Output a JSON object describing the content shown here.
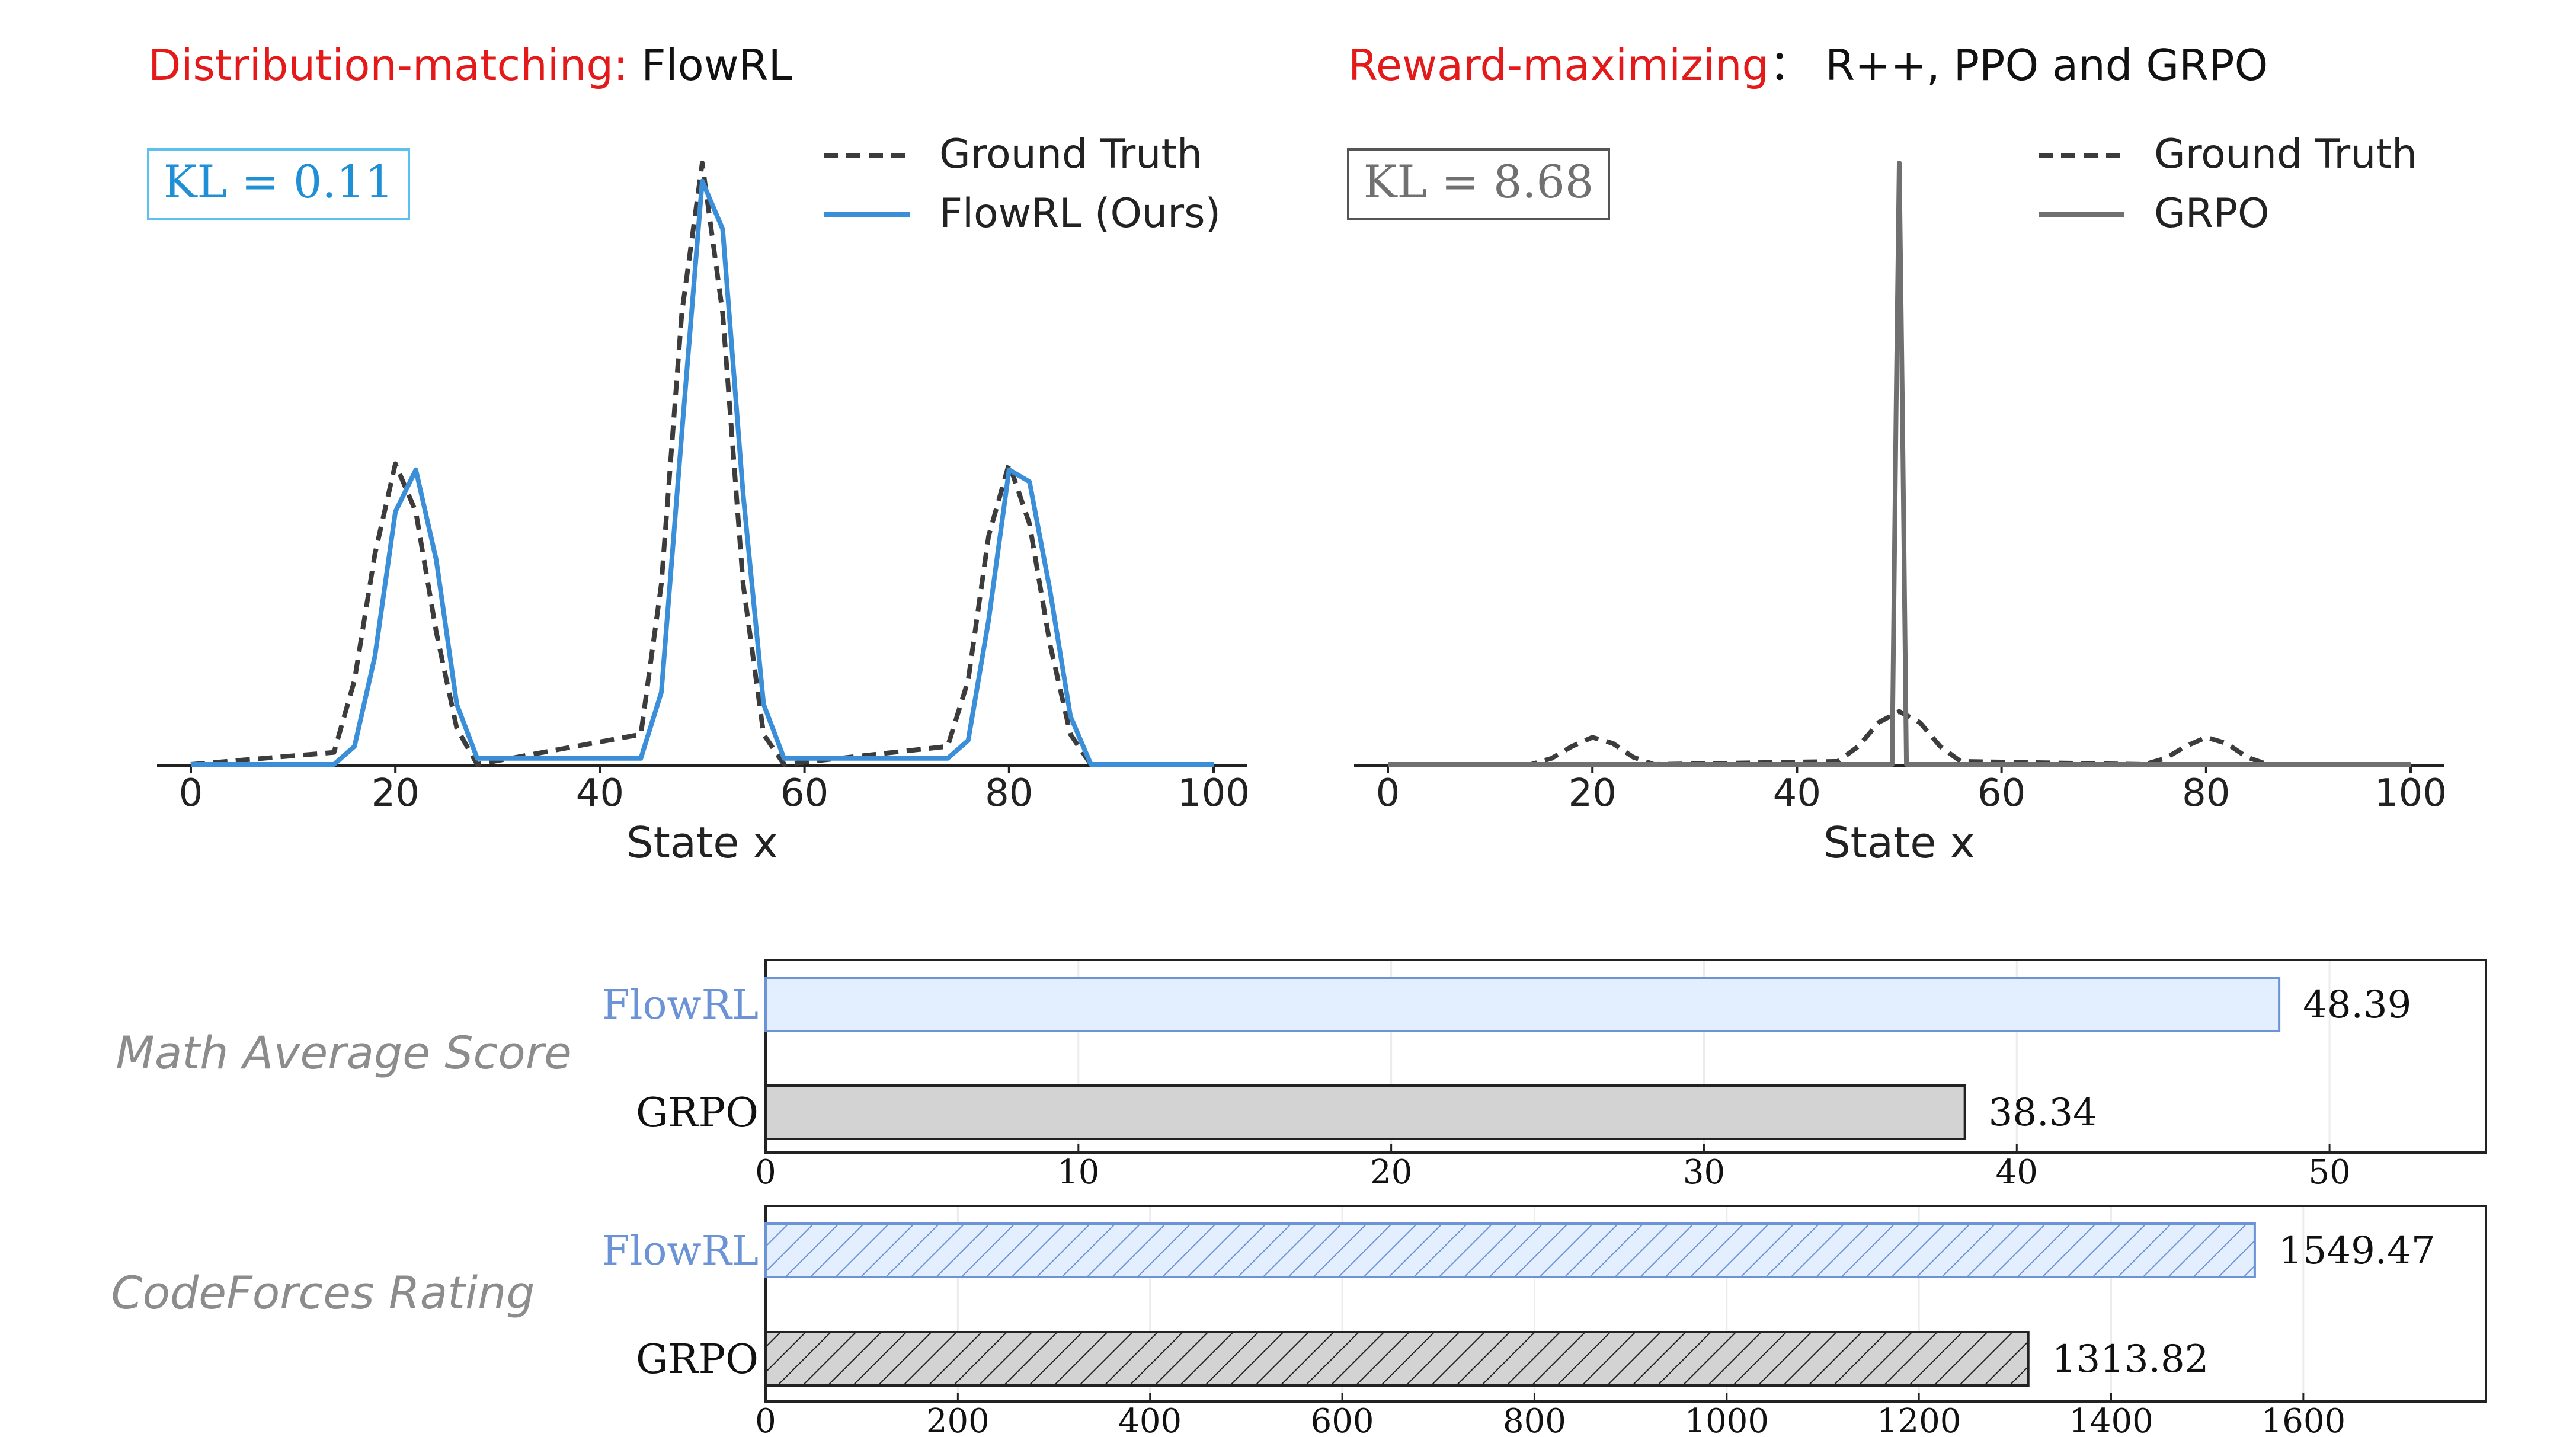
{
  "colors": {
    "red": "#e41a1a",
    "black": "#111111",
    "flow_blue": "#3b8fd9",
    "flow_blue_light": "#6b93d6",
    "kl_blue": "#1f8fd6",
    "kl_box_blue": "#5cc1ee",
    "gray": "#707070",
    "gray_dark": "#3c3c3c",
    "bar_blue_fill": "#e3efff",
    "bar_gray_fill": "#d3d3d3",
    "label_gray": "#8c8c8c"
  },
  "panels": {
    "left": {
      "title_red": "Distribution-matching:",
      "title_black": " FlowRL",
      "kl_label": "KL = 0.11",
      "legend": [
        "Ground Truth",
        "FlowRL (Ours)"
      ]
    },
    "right": {
      "title_red": "Reward-maximizing",
      "title_black": "： R++, PPO and GRPO",
      "kl_label": "KL = 8.68",
      "legend": [
        "Ground Truth",
        "GRPO"
      ]
    },
    "bars": {
      "math_label": "Math Average Score",
      "code_label": "CodeForces Rating"
    }
  },
  "chart_data": [
    {
      "type": "line",
      "xlabel": "State x",
      "ylabel": "",
      "xlim": [
        0,
        100
      ],
      "ylim": [
        0,
        1.0
      ],
      "xticks": [
        0,
        20,
        40,
        60,
        80,
        100
      ],
      "grid": false,
      "legend_position": "top-right",
      "x": [
        0,
        14,
        16,
        18,
        20,
        22,
        24,
        26,
        28,
        44,
        46,
        48,
        50,
        52,
        54,
        56,
        58,
        74,
        76,
        78,
        80,
        82,
        84,
        86,
        88,
        100
      ],
      "series": [
        {
          "name": "Ground Truth",
          "style": "dashed",
          "values": [
            0,
            0.02,
            0.14,
            0.35,
            0.5,
            0.42,
            0.22,
            0.06,
            0,
            0.05,
            0.3,
            0.75,
            1.0,
            0.75,
            0.3,
            0.05,
            0,
            0.03,
            0.14,
            0.38,
            0.5,
            0.4,
            0.2,
            0.05,
            0,
            0
          ]
        },
        {
          "name": "FlowRL (Ours)",
          "style": "solid",
          "values": [
            0,
            0,
            0.03,
            0.18,
            0.42,
            0.49,
            0.34,
            0.1,
            0.01,
            0.01,
            0.12,
            0.55,
            0.97,
            0.89,
            0.45,
            0.1,
            0.01,
            0.01,
            0.04,
            0.24,
            0.49,
            0.47,
            0.29,
            0.08,
            0,
            0
          ]
        }
      ]
    },
    {
      "type": "line",
      "xlabel": "State x",
      "ylabel": "",
      "xlim": [
        0,
        100
      ],
      "ylim": [
        0,
        1.0
      ],
      "xticks": [
        0,
        20,
        40,
        60,
        80,
        100
      ],
      "grid": false,
      "legend_position": "top-right",
      "series": [
        {
          "name": "Ground Truth",
          "style": "dashed",
          "x": [
            0,
            14,
            16,
            18,
            20,
            22,
            24,
            26,
            44,
            46,
            48,
            50,
            52,
            54,
            56,
            74,
            76,
            78,
            80,
            82,
            84,
            86,
            100
          ],
          "values": [
            0,
            0,
            0.01,
            0.03,
            0.045,
            0.035,
            0.012,
            0,
            0.005,
            0.03,
            0.07,
            0.088,
            0.07,
            0.03,
            0.005,
            0,
            0.01,
            0.03,
            0.045,
            0.035,
            0.012,
            0,
            0
          ]
        },
        {
          "name": "GRPO",
          "style": "solid",
          "x": [
            0,
            49,
            49.3,
            49.7,
            50,
            50.3,
            50.7,
            51,
            100
          ],
          "values": [
            0,
            0,
            0,
            0.6,
            1.0,
            0.6,
            0,
            0,
            0
          ]
        }
      ]
    },
    {
      "type": "bar",
      "orientation": "horizontal",
      "title": "Math Average Score",
      "categories": [
        "FlowRL",
        "GRPO"
      ],
      "values": [
        48.39,
        38.34
      ],
      "value_labels": [
        "48.39",
        "38.34"
      ],
      "xlim": [
        0,
        55
      ],
      "xticks": [
        0,
        10,
        20,
        30,
        40,
        50
      ],
      "grid": true
    },
    {
      "type": "bar",
      "orientation": "horizontal",
      "title": "CodeForces Rating",
      "categories": [
        "FlowRL",
        "GRPO"
      ],
      "values": [
        1549.47,
        1313.82
      ],
      "value_labels": [
        "1549.47",
        "1313.82"
      ],
      "xlim": [
        0,
        1790
      ],
      "xticks": [
        0,
        200,
        400,
        600,
        800,
        1000,
        1200,
        1400,
        1600
      ],
      "hatched": true,
      "grid": true
    }
  ]
}
